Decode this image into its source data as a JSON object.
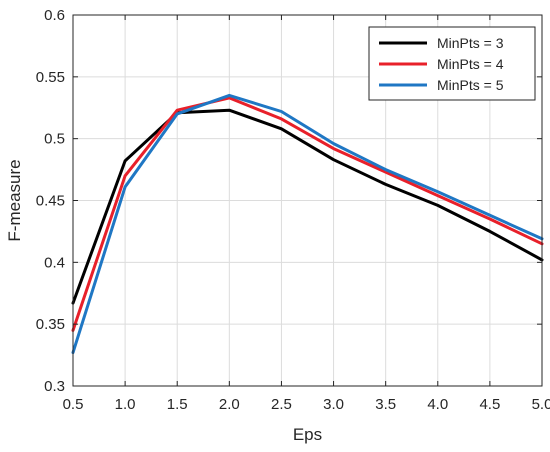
{
  "chart_data": {
    "type": "line",
    "title": "",
    "xlabel": "Eps",
    "ylabel": "F-measure",
    "x": [
      0.5,
      1.0,
      1.5,
      2.0,
      2.5,
      3.0,
      3.5,
      4.0,
      4.5,
      5.0
    ],
    "xticks": [
      "0.5",
      "1.0",
      "1.5",
      "2.0",
      "2.5",
      "3.0",
      "3.5",
      "4.0",
      "4.5",
      "5.0"
    ],
    "yticks": [
      "0.3",
      "0.35",
      "0.4",
      "0.45",
      "0.5",
      "0.55",
      "0.6"
    ],
    "ytick_values": [
      0.3,
      0.35,
      0.4,
      0.45,
      0.5,
      0.55,
      0.6
    ],
    "xlim": [
      0.5,
      5.0
    ],
    "ylim": [
      0.3,
      0.6
    ],
    "grid": true,
    "legend_position": "top-right",
    "series": [
      {
        "name": "MinPts = 3",
        "color": "#000000",
        "values": [
          0.367,
          0.482,
          0.521,
          0.523,
          0.508,
          0.483,
          0.463,
          0.446,
          0.425,
          0.402
        ]
      },
      {
        "name": "MinPts = 4",
        "color": "#e8202a",
        "values": [
          0.345,
          0.47,
          0.523,
          0.533,
          0.516,
          0.492,
          0.473,
          0.454,
          0.435,
          0.415
        ]
      },
      {
        "name": "MinPts = 5",
        "color": "#1f77c4",
        "values": [
          0.327,
          0.461,
          0.52,
          0.535,
          0.522,
          0.496,
          0.475,
          0.457,
          0.438,
          0.419
        ]
      }
    ]
  }
}
